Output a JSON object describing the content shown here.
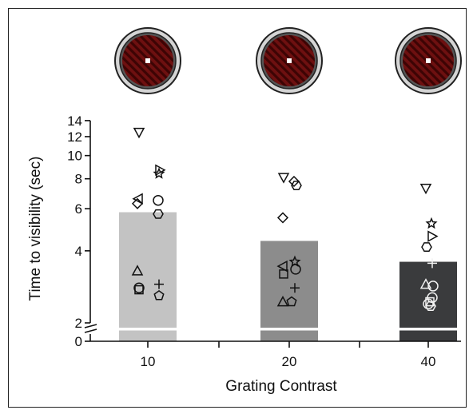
{
  "chart_data": {
    "type": "bar",
    "ylabel": "Time to visibility (sec)",
    "xlabel": "Grating Contrast",
    "categories": [
      "10",
      "20",
      "40"
    ],
    "values": [
      5.8,
      4.4,
      3.6
    ],
    "bar_colors": [
      "#c3c3c3",
      "#8c8c8c",
      "#3a3b3d"
    ],
    "y_ticks": [
      "0",
      "2",
      "4",
      "6",
      "8",
      "10",
      "12",
      "14"
    ],
    "yscale": "log (with axis break between 0 and 2)",
    "ylim": [
      0,
      14
    ],
    "stimulus_icon": "red-diagonal-grating-disc-icon",
    "stimulus_color": "#6e1010",
    "points": [
      {
        "category": "10",
        "marker": "triangle-down",
        "value": 12.5
      },
      {
        "category": "10",
        "marker": "triangle-right",
        "value": 8.7
      },
      {
        "category": "10",
        "marker": "star",
        "value": 8.4
      },
      {
        "category": "10",
        "marker": "triangle-left",
        "value": 6.6
      },
      {
        "category": "10",
        "marker": "diamond",
        "value": 6.3
      },
      {
        "category": "10",
        "marker": "circle",
        "value": 6.5
      },
      {
        "category": "10",
        "marker": "hexagon",
        "value": 5.7
      },
      {
        "category": "10",
        "marker": "triangle-up",
        "value": 3.3
      },
      {
        "category": "10",
        "marker": "square",
        "value": 2.75
      },
      {
        "category": "10",
        "marker": "circle",
        "value": 2.8
      },
      {
        "category": "10",
        "marker": "plus",
        "value": 2.9
      },
      {
        "category": "10",
        "marker": "pentagon",
        "value": 2.6
      },
      {
        "category": "20",
        "marker": "triangle-down",
        "value": 8.1
      },
      {
        "category": "20",
        "marker": "diamond",
        "value": 7.8
      },
      {
        "category": "20",
        "marker": "hexagon",
        "value": 7.5
      },
      {
        "category": "20",
        "marker": "diamond",
        "value": 5.5
      },
      {
        "category": "20",
        "marker": "star",
        "value": 3.6
      },
      {
        "category": "20",
        "marker": "triangle-left",
        "value": 3.45
      },
      {
        "category": "20",
        "marker": "circle",
        "value": 3.35
      },
      {
        "category": "20",
        "marker": "square",
        "value": 3.2
      },
      {
        "category": "20",
        "marker": "plus",
        "value": 2.8
      },
      {
        "category": "20",
        "marker": "triangle-up",
        "value": 2.45
      },
      {
        "category": "20",
        "marker": "pentagon",
        "value": 2.45
      },
      {
        "category": "40",
        "marker": "triangle-down",
        "value": 7.3
      },
      {
        "category": "40",
        "marker": "star",
        "value": 5.2
      },
      {
        "category": "40",
        "marker": "triangle-right",
        "value": 4.6
      },
      {
        "category": "40",
        "marker": "hexagon",
        "value": 4.15
      },
      {
        "category": "40",
        "marker": "plus",
        "value": 3.55
      },
      {
        "category": "40",
        "marker": "triangle-up",
        "value": 2.9
      },
      {
        "category": "40",
        "marker": "circle",
        "value": 2.85
      },
      {
        "category": "40",
        "marker": "circle",
        "value": 2.55
      },
      {
        "category": "40",
        "marker": "square",
        "value": 2.45
      },
      {
        "category": "40",
        "marker": "circle",
        "value": 2.4
      },
      {
        "category": "40",
        "marker": "hexagon",
        "value": 2.35
      }
    ]
  }
}
